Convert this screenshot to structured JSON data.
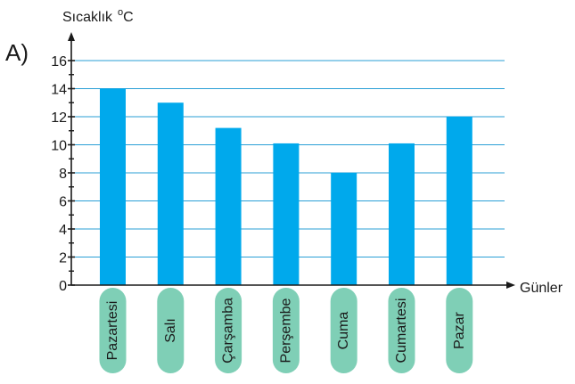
{
  "option_label": "A)",
  "colors": {
    "bar": "#00a9ec",
    "grid": "#2a9fd6",
    "category_pill": "#7fcfb6",
    "axis": "#1a1a1a"
  },
  "chart_data": {
    "type": "bar",
    "ylabel": "Sıcaklık",
    "ylabel_unit_sup": "o",
    "ylabel_unit": "C",
    "xlabel": "Günler",
    "categories": [
      "Pazartesi",
      "Salı",
      "Çarşamba",
      "Perşembe",
      "Cuma",
      "Cumartesi",
      "Pazar"
    ],
    "values": [
      14,
      13,
      11.2,
      10.1,
      8,
      10.1,
      12
    ],
    "ylim": [
      0,
      16
    ],
    "yticks": [
      0,
      2,
      4,
      6,
      8,
      10,
      12,
      14,
      16
    ],
    "grid": true,
    "legend": "none"
  }
}
